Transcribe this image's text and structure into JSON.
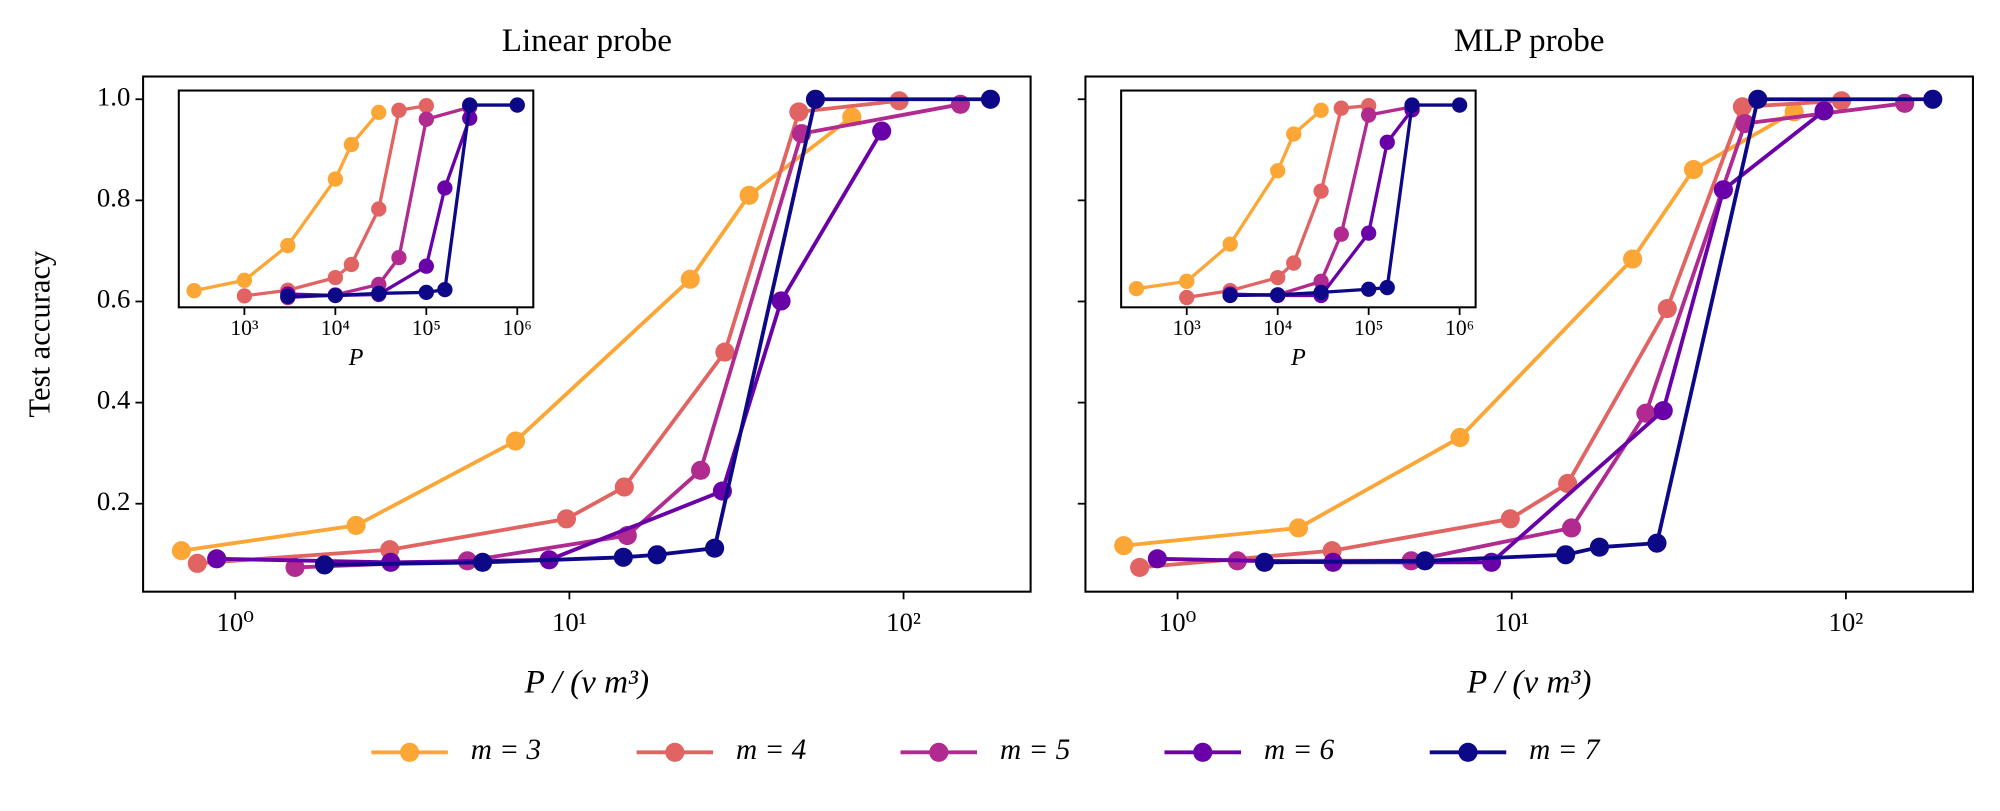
{
  "chart_data": [
    {
      "type": "line",
      "title": "Linear probe",
      "xlabel": "P / (v m³)",
      "ylabel": "Test accuracy",
      "xscale": "log",
      "xlim": [
        0.53,
        240
      ],
      "ylim": [
        0.026,
        1.045
      ],
      "xticks": [
        {
          "value": 1,
          "label": "10⁰"
        },
        {
          "value": 10,
          "label": "10¹"
        },
        {
          "value": 100,
          "label": "10²"
        }
      ],
      "yticks": [
        0.2,
        0.4,
        0.6,
        0.8,
        {
          "value": 1,
          "label": "1.0"
        }
      ],
      "legend": "below",
      "series": [
        {
          "name": "m = 3",
          "color": "#fca636",
          "x": [
            0.69,
            2.3,
            6.9,
            23,
            34.5,
            70
          ],
          "values": [
            0.107,
            0.157,
            0.324,
            0.644,
            0.81,
            0.965
          ]
        },
        {
          "name": "m = 4",
          "color": "#e16462",
          "x": [
            0.77,
            2.9,
            9.8,
            14.6,
            29.2,
            48.6,
            97
          ],
          "values": [
            0.082,
            0.109,
            0.17,
            0.233,
            0.5,
            0.975,
            0.997
          ]
        },
        {
          "name": "m = 5",
          "color": "#b12a90",
          "x": [
            1.51,
            4.95,
            14.9,
            24.7,
            49.5,
            148
          ],
          "values": [
            0.074,
            0.087,
            0.137,
            0.266,
            0.932,
            0.99
          ]
        },
        {
          "name": "m = 6",
          "color": "#6a00a8",
          "x": [
            0.88,
            2.92,
            8.7,
            28.7,
            43,
            86
          ],
          "values": [
            0.091,
            0.084,
            0.089,
            0.225,
            0.601,
            0.937
          ]
        },
        {
          "name": "m = 7",
          "color": "#0d0887",
          "x": [
            1.85,
            5.5,
            14.5,
            18.3,
            27.2,
            54.5,
            182
          ],
          "values": [
            0.079,
            0.084,
            0.094,
            0.099,
            0.112,
            1.0,
            1.0
          ]
        }
      ]
    },
    {
      "type": "line",
      "xlabel": "P",
      "xscale": "log",
      "xlim": [
        190,
        1500000
      ],
      "ylim": [
        0.027,
        1.07
      ],
      "xticks": [
        {
          "value": 1000,
          "label": "10³"
        },
        {
          "value": 10000,
          "label": "10⁴"
        },
        {
          "value": 100000,
          "label": "10⁵"
        },
        {
          "value": 1000000,
          "label": "10⁶"
        }
      ],
      "series": [
        {
          "color": "#fca636",
          "x": [
            280,
            1000,
            3000,
            10000,
            15000,
            30000
          ],
          "values": [
            0.107,
            0.157,
            0.324,
            0.644,
            0.81,
            0.965
          ]
        },
        {
          "color": "#e16462",
          "x": [
            1000,
            3000,
            10000,
            15000,
            30000,
            50000,
            100000
          ],
          "values": [
            0.082,
            0.109,
            0.17,
            0.233,
            0.5,
            0.975,
            0.997
          ]
        },
        {
          "color": "#b12a90",
          "x": [
            3000,
            10000,
            30000,
            50000,
            100000,
            300000
          ],
          "values": [
            0.074,
            0.087,
            0.137,
            0.266,
            0.932,
            0.99
          ]
        },
        {
          "color": "#6a00a8",
          "x": [
            3000,
            10000,
            30000,
            100000,
            160000,
            300000
          ],
          "values": [
            0.091,
            0.084,
            0.089,
            0.225,
            0.601,
            0.937
          ]
        },
        {
          "color": "#0d0887",
          "x": [
            3000,
            10000,
            30000,
            100000,
            160000,
            300000,
            1000000
          ],
          "values": [
            0.079,
            0.084,
            0.094,
            0.099,
            0.112,
            1.0,
            1.0
          ]
        }
      ]
    },
    {
      "type": "line",
      "title": "MLP probe",
      "xlabel": "P / (v m³)",
      "xscale": "log",
      "xlim": [
        0.53,
        240
      ],
      "ylim": [
        0.026,
        1.045
      ],
      "xticks": [
        {
          "value": 1,
          "label": "10⁰"
        },
        {
          "value": 10,
          "label": "10¹"
        },
        {
          "value": 100,
          "label": "10²"
        }
      ],
      "yticks": [
        0.2,
        0.4,
        0.6,
        0.8,
        1
      ],
      "ytick_labels": false,
      "series": [
        {
          "color": "#fca636",
          "x": [
            0.69,
            2.3,
            7,
            23,
            35,
            70
          ],
          "values": [
            0.117,
            0.152,
            0.331,
            0.684,
            0.861,
            0.975
          ]
        },
        {
          "color": "#e16462",
          "x": [
            0.77,
            2.9,
            9.9,
            14.7,
            29.2,
            49,
            97
          ],
          "values": [
            0.074,
            0.107,
            0.17,
            0.24,
            0.586,
            0.985,
            0.997
          ]
        },
        {
          "color": "#b12a90",
          "x": [
            1.51,
            5,
            15.1,
            25.2,
            49.9,
            150
          ],
          "values": [
            0.087,
            0.087,
            0.152,
            0.379,
            0.952,
            0.992
          ]
        },
        {
          "color": "#6a00a8",
          "x": [
            0.87,
            2.92,
            8.7,
            28.4,
            43,
            86
          ],
          "values": [
            0.091,
            0.084,
            0.084,
            0.384,
            0.821,
            0.977
          ]
        },
        {
          "color": "#0d0887",
          "x": [
            1.82,
            5.5,
            14.5,
            18.3,
            27.2,
            54.5,
            182
          ],
          "values": [
            0.084,
            0.087,
            0.099,
            0.114,
            0.122,
            1.0,
            1.0
          ]
        }
      ]
    },
    {
      "type": "line",
      "xlabel": "P",
      "xscale": "log",
      "xlim": [
        190,
        1500000
      ],
      "ylim": [
        0.027,
        1.07
      ],
      "xticks": [
        {
          "value": 1000,
          "label": "10³"
        },
        {
          "value": 10000,
          "label": "10⁴"
        },
        {
          "value": 100000,
          "label": "10⁵"
        },
        {
          "value": 1000000,
          "label": "10⁶"
        }
      ],
      "series": [
        {
          "color": "#fca636",
          "x": [
            280,
            1000,
            3000,
            10000,
            15000,
            30000
          ],
          "values": [
            0.117,
            0.152,
            0.331,
            0.684,
            0.861,
            0.975
          ]
        },
        {
          "color": "#e16462",
          "x": [
            1000,
            3000,
            10000,
            15000,
            30000,
            50000,
            100000
          ],
          "values": [
            0.074,
            0.107,
            0.17,
            0.24,
            0.586,
            0.985,
            0.997
          ]
        },
        {
          "color": "#b12a90",
          "x": [
            3000,
            10000,
            30000,
            50000,
            100000,
            300000
          ],
          "values": [
            0.087,
            0.087,
            0.152,
            0.379,
            0.952,
            0.992
          ]
        },
        {
          "color": "#6a00a8",
          "x": [
            3000,
            10000,
            30000,
            100000,
            160000,
            300000
          ],
          "values": [
            0.091,
            0.084,
            0.084,
            0.384,
            0.821,
            0.977
          ]
        },
        {
          "color": "#0d0887",
          "x": [
            3000,
            10000,
            30000,
            100000,
            160000,
            300000,
            1000000
          ],
          "values": [
            0.084,
            0.087,
            0.099,
            0.114,
            0.122,
            1.0,
            1.0
          ]
        }
      ]
    }
  ]
}
